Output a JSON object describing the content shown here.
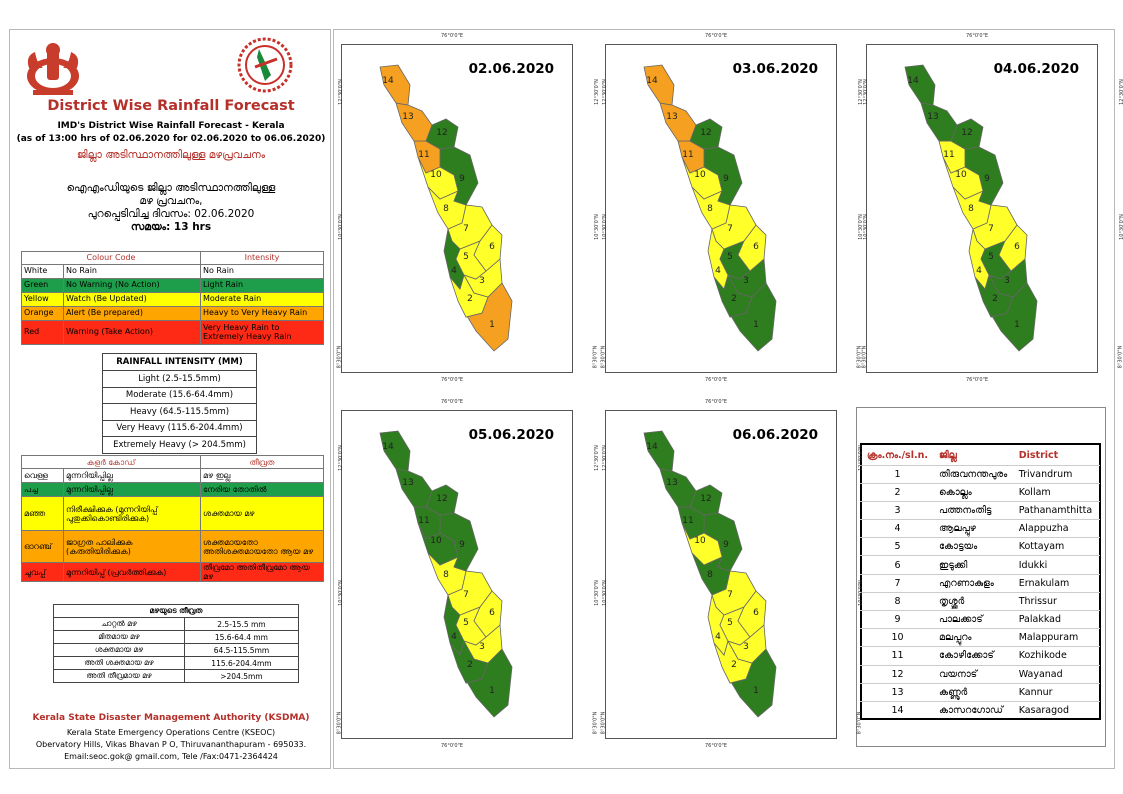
{
  "left": {
    "title": "District Wise Rainfall Forecast",
    "sub1": "IMD's District Wise Rainfall Forecast - Kerala",
    "sub2": "(as of 13:00 hrs of 02.06.2020  for 02.06.2020  to 06.06.2020)",
    "mal_title": "ജില്ലാ അടിസ്ഥാനത്തിലുള്ള മഴപ്രവചനം",
    "mal_l1": "ഐഎംഡിയുടെ ജില്ലാ   അടിസ്ഥാനത്തിലുള്ള",
    "mal_l2": "മഴ പ്രവചനം,",
    "mal_l3": "പുറപ്പെടിവിച്ച    ദിവസം: 02.06.2020",
    "mal_l4": "സമയം: 13 hrs",
    "colour_header": "Colour Code",
    "intensity_header": "Intensity",
    "legend": [
      {
        "color": "#ffffff",
        "name": "White",
        "meaning": "No Rain",
        "intensity": "No Rain"
      },
      {
        "color": "#1e9e4a",
        "name": "Green",
        "meaning": "No Warning (No Action)",
        "intensity": "Light Rain"
      },
      {
        "color": "#ffff00",
        "name": "Yellow",
        "meaning": "Watch (Be Updated)",
        "intensity": "Moderate Rain"
      },
      {
        "color": "#ffa500",
        "name": "Orange",
        "meaning": "Alert (Be prepared)",
        "intensity": "Heavy to Very Heavy Rain"
      },
      {
        "color": "#ff2a16",
        "name": "Red",
        "meaning": "Warning (Take Action)",
        "intensity": "Very Heavy Rain to Extremely Heavy Rain"
      }
    ],
    "ri_title": "RAINFALL INTENSITY (MM)",
    "ri_rows": [
      "Light (2.5-15.5mm)",
      "Moderate (15.6-64.4mm)",
      "Heavy (64.5-115.5mm)",
      "Very Heavy (115.6-204.4mm)",
      "Extremely Heavy (> 204.5mm)"
    ],
    "mal_colour_header": "കളർ കോഡ്",
    "mal_intensity_header": "തീവ്രത",
    "mal_legend": [
      {
        "color": "#ffffff",
        "name": "വെള്ള",
        "meaning": "മുന്നറിയിപ്പില്ല",
        "intensity": "മഴ ഇല്ല"
      },
      {
        "color": "#1e9e4a",
        "name": "പച്ച",
        "meaning": "മുന്നറിയിപ്പില്ല",
        "intensity": "നേരിയ തോതിൽ"
      },
      {
        "color": "#ffff00",
        "name": "മഞ്ഞ",
        "meaning": "നിരീക്ഷിക്കുക (മുന്നറിയിപ്പ് പുതുക്കികൊണ്ടിരിക്കുക)",
        "intensity": "ശക്തമായ മഴ"
      },
      {
        "color": "#ffa500",
        "name": "ഓറഞ്ച്",
        "meaning": "ജാഗ്രത പാലിക്കുക (കരുതിയിരിക്കുക)",
        "intensity": "ശക്തമായതോ അതിശക്തമായതോ ആയ മഴ"
      },
      {
        "color": "#ff2a16",
        "name": "ചുവപ്പ്",
        "meaning": "മുന്നറിയിപ്പ് (പ്രവർത്തിക്കുക)",
        "intensity": "തീവ്രമോ അതിതീവ്രമോ ആയ മഴ"
      }
    ],
    "mi_title": "മഴയുടെ  തീവ്രത",
    "mi_rows": [
      {
        "label": "ചാറ്റൽ  മഴ",
        "value": "2.5-15.5 mm"
      },
      {
        "label": "മിതമായ  മഴ",
        "value": "15.6-64.4 mm"
      },
      {
        "label": "ശക്തമായ  മഴ",
        "value": "64.5-115.5mm"
      },
      {
        "label": "അതി ശക്തമായ  മഴ",
        "value": "115.6-204.4mm"
      },
      {
        "label": "അതി തീവ്രമായ  മഴ",
        "value": ">204.5mm"
      }
    ],
    "footer_org": "Kerala State Disaster Management Authority (KSDMA)",
    "footer_l1": "Kerala State Emergency Operations Centre (KSEOC)",
    "footer_l2": "Obervatory Hills, Vikas Bhavan P O, Thiruvananthapuram - 695033.",
    "footer_l3": "Email:seoc.gok@ gmail.com, Tele /Fax:0471-2364424"
  },
  "axis": {
    "top": "76°0'0\"E",
    "right_top": "12°30'0\"N",
    "right_mid": "10°30'0\"N",
    "right_bot": "8°30'0\"N"
  },
  "maps": [
    {
      "date": "02.06.2020",
      "colors": {
        "1": "orange",
        "2": "yellow",
        "3": "yellow",
        "4": "green",
        "5": "yellow",
        "6": "yellow",
        "7": "yellow",
        "8": "yellow",
        "9": "green",
        "10": "yellow",
        "11": "orange",
        "12": "green",
        "13": "orange",
        "14": "orange"
      }
    },
    {
      "date": "03.06.2020",
      "colors": {
        "1": "green",
        "2": "green",
        "3": "green",
        "4": "yellow",
        "5": "green",
        "6": "yellow",
        "7": "yellow",
        "8": "yellow",
        "9": "green",
        "10": "yellow",
        "11": "orange",
        "12": "green",
        "13": "orange",
        "14": "orange"
      }
    },
    {
      "date": "04.06.2020",
      "colors": {
        "1": "green",
        "2": "green",
        "3": "green",
        "4": "yellow",
        "5": "green",
        "6": "yellow",
        "7": "yellow",
        "8": "yellow",
        "9": "green",
        "10": "yellow",
        "11": "yellow",
        "12": "green",
        "13": "green",
        "14": "green"
      }
    },
    {
      "date": "05.06.2020",
      "colors": {
        "1": "green",
        "2": "green",
        "3": "yellow",
        "4": "green",
        "5": "yellow",
        "6": "yellow",
        "7": "yellow",
        "8": "yellow",
        "9": "green",
        "10": "green",
        "11": "green",
        "12": "green",
        "13": "green",
        "14": "green"
      }
    },
    {
      "date": "06.06.2020",
      "colors": {
        "1": "green",
        "2": "yellow",
        "3": "yellow",
        "4": "yellow",
        "5": "yellow",
        "6": "yellow",
        "7": "yellow",
        "8": "green",
        "9": "green",
        "10": "yellow",
        "11": "green",
        "12": "green",
        "13": "green",
        "14": "green"
      }
    }
  ],
  "district_table": {
    "headers": [
      "ക്രം.നം./sl.n.",
      "ജില്ല",
      "District"
    ],
    "rows": [
      [
        "1",
        "തിരുവനന്തപുരം",
        "Trivandrum"
      ],
      [
        "2",
        "കൊല്ലം",
        "Kollam"
      ],
      [
        "3",
        "പത്തനംതിട്ട",
        "Pathanamthitta"
      ],
      [
        "4",
        "ആലപ്പുഴ",
        "Alappuzha"
      ],
      [
        "5",
        "കോട്ടയം",
        "Kottayam"
      ],
      [
        "6",
        "ഇടുക്കി",
        "Idukki"
      ],
      [
        "7",
        "എറണാകുളം",
        "Ernakulam"
      ],
      [
        "8",
        "തൃശ്ശൂർ",
        "Thrissur"
      ],
      [
        "9",
        "പാലക്കാട്",
        "Palakkad"
      ],
      [
        "10",
        "മലപ്പുറം",
        "Malappuram"
      ],
      [
        "11",
        "കോഴിക്കോട്",
        "Kozhikode"
      ],
      [
        "12",
        "വയനാട്",
        "Wayanad"
      ],
      [
        "13",
        "കണ്ണൂർ",
        "Kannur"
      ],
      [
        "14",
        "കാസറഗോഡ്",
        "Kasaragod"
      ]
    ]
  }
}
